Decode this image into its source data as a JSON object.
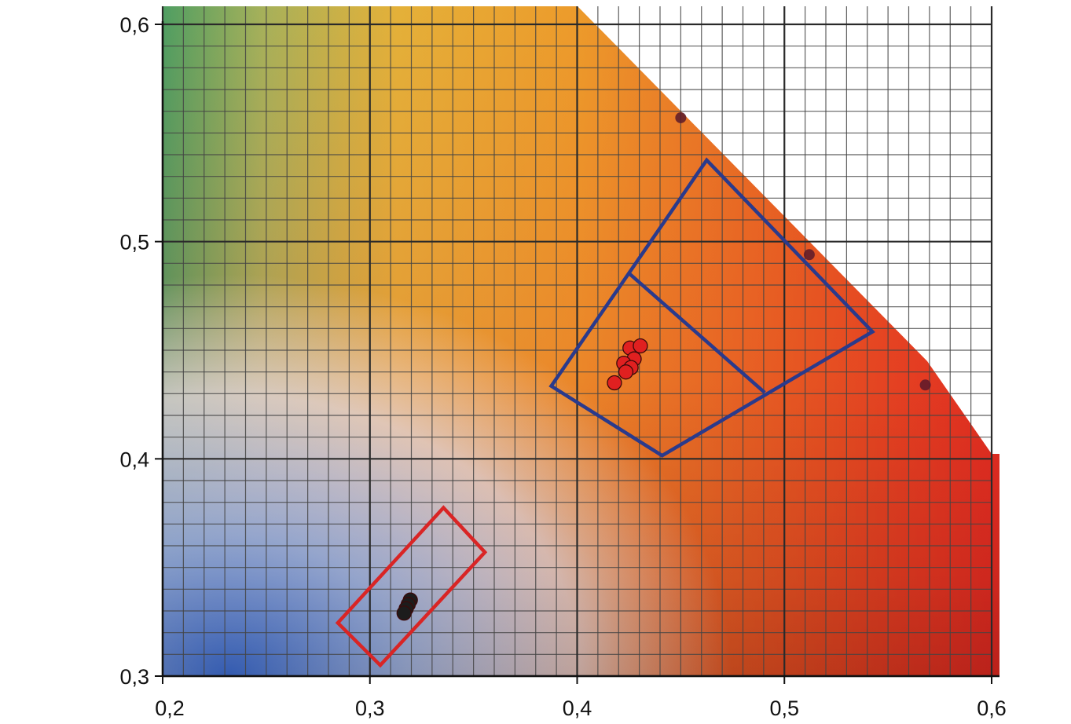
{
  "chart_data": {
    "type": "scatter",
    "title": "",
    "xlabel": "",
    "ylabel": "",
    "xlim": [
      0.2,
      0.6
    ],
    "ylim": [
      0.3,
      0.6
    ],
    "grid": true,
    "x_ticks": [
      0.2,
      0.3,
      0.4,
      0.5,
      0.6
    ],
    "y_ticks": [
      0.3,
      0.4,
      0.5,
      0.6
    ],
    "x_tick_labels": [
      "0,2",
      "0,3",
      "0,4",
      "0,5",
      "0,6"
    ],
    "y_tick_labels": [
      "0,3",
      "0,4",
      "0,5",
      "0,6"
    ],
    "background": "chromaticity color field",
    "series": [
      {
        "color": "#e02020",
        "points": [
          {
            "x": 0.4255,
            "y": 0.451
          },
          {
            "x": 0.4305,
            "y": 0.452
          },
          {
            "x": 0.4275,
            "y": 0.446
          },
          {
            "x": 0.4225,
            "y": 0.444
          },
          {
            "x": 0.426,
            "y": 0.442
          },
          {
            "x": 0.4235,
            "y": 0.44
          },
          {
            "x": 0.418,
            "y": 0.435
          }
        ]
      },
      {
        "color": "#1c1c1c",
        "points": [
          {
            "x": 0.3195,
            "y": 0.335
          },
          {
            "x": 0.3185,
            "y": 0.333
          },
          {
            "x": 0.3175,
            "y": 0.331
          },
          {
            "x": 0.3165,
            "y": 0.329
          }
        ]
      }
    ],
    "regions": [
      {
        "color": "#2a3a8c",
        "polygon": [
          [
            0.3875,
            0.4335
          ],
          [
            0.4625,
            0.5375
          ],
          [
            0.5425,
            0.4585
          ],
          [
            0.441,
            0.4015
          ]
        ]
      },
      {
        "color": "#2a3a8c",
        "polyline": [
          [
            0.4255,
            0.485
          ],
          [
            0.4905,
            0.4305
          ]
        ]
      },
      {
        "color": "#d92525",
        "polygon": [
          [
            0.2845,
            0.3245
          ],
          [
            0.3355,
            0.3775
          ],
          [
            0.3555,
            0.357
          ],
          [
            0.305,
            0.305
          ]
        ]
      }
    ],
    "boundary_points": [
      {
        "x": 0.45,
        "y": 0.557
      },
      {
        "x": 0.512,
        "y": 0.494
      },
      {
        "x": 0.568,
        "y": 0.434
      }
    ],
    "colors": {
      "axis": "#111111",
      "grid_major": "#2a2a2a",
      "grid_minor": "#444444",
      "boundary_point": "#5a1a2a"
    }
  }
}
